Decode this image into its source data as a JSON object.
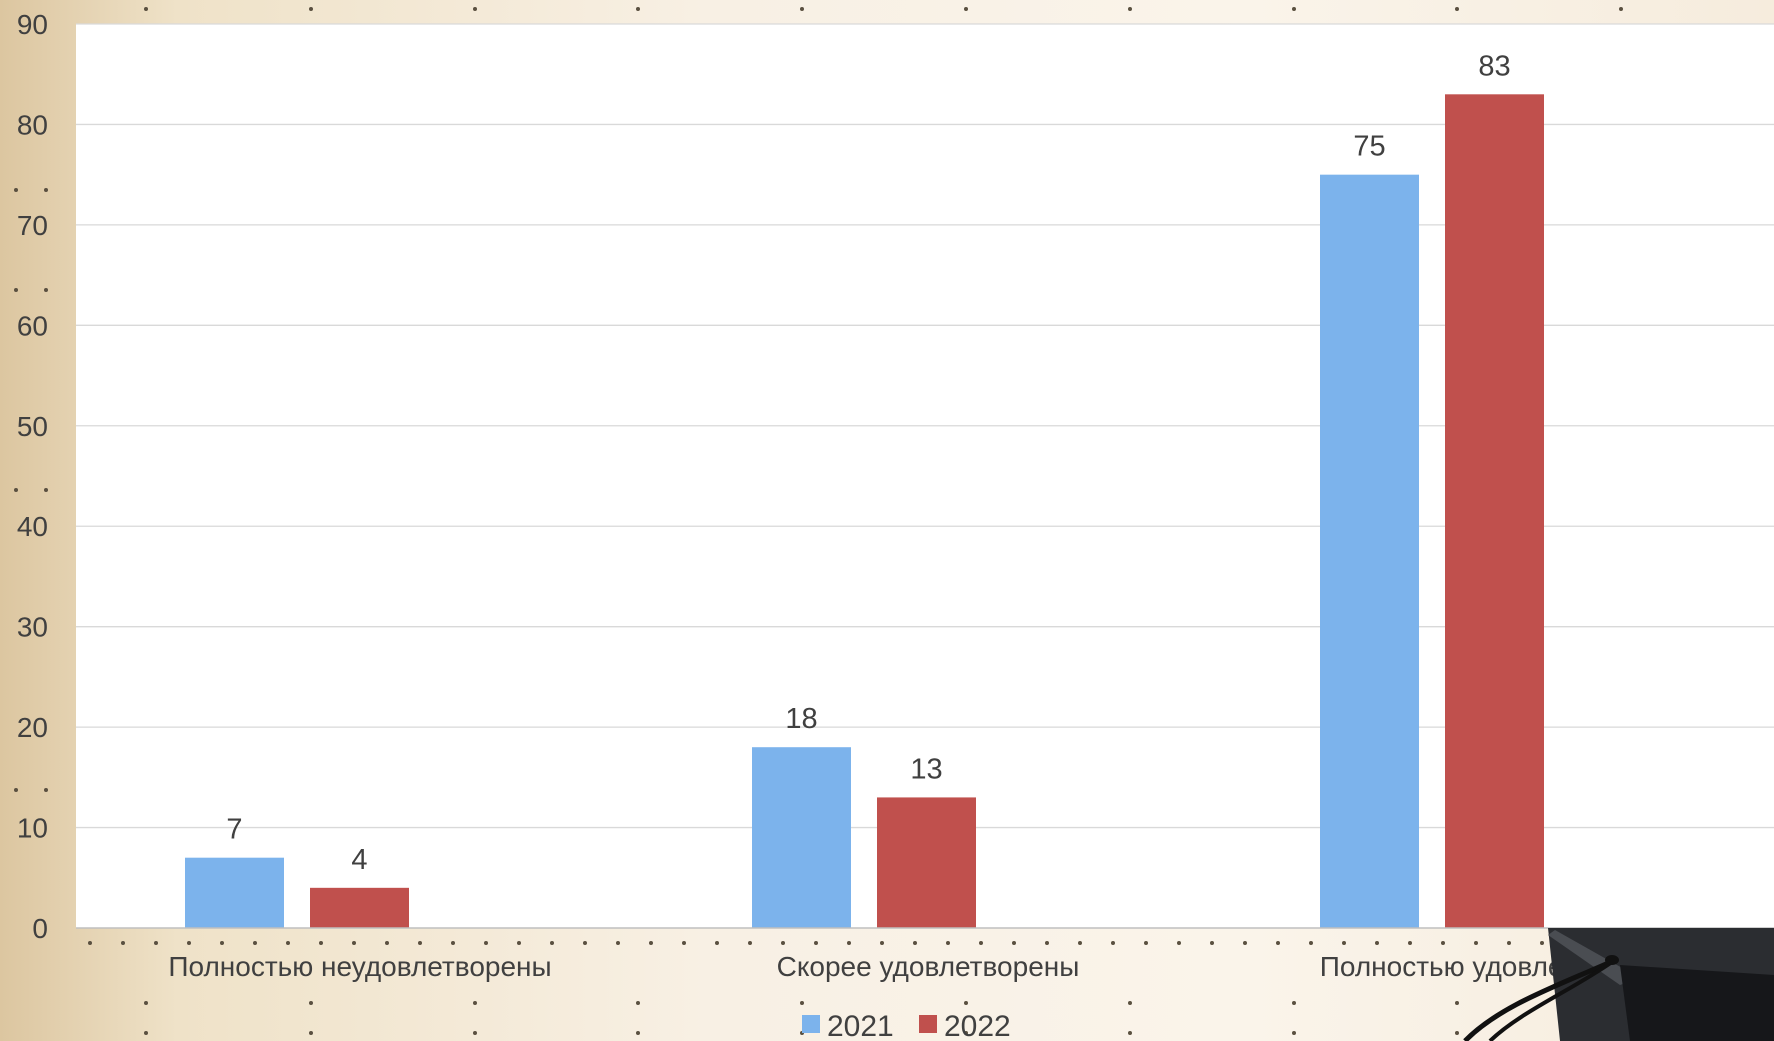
{
  "colors": {
    "series_2021": "#7cb3ec",
    "series_2022": "#c0504d",
    "gridline": "#d9d9d9",
    "plot_background": "#ffffff",
    "text": "#404040"
  },
  "chart_data": {
    "type": "bar",
    "title": "",
    "xlabel": "",
    "ylabel": "",
    "categories": [
      "Полностью неудовлетворены",
      "Скорее удовлетворены",
      "Полностью удовлетворены"
    ],
    "series": [
      {
        "name": "2021",
        "values": [
          7,
          18,
          75
        ]
      },
      {
        "name": "2022",
        "values": [
          4,
          13,
          83
        ]
      }
    ],
    "ylim": [
      0,
      90
    ],
    "yticks": [
      0,
      10,
      20,
      30,
      40,
      50,
      60,
      70,
      80,
      90
    ],
    "grid": true,
    "data_labels": true,
    "legend_position": "bottom-center"
  }
}
